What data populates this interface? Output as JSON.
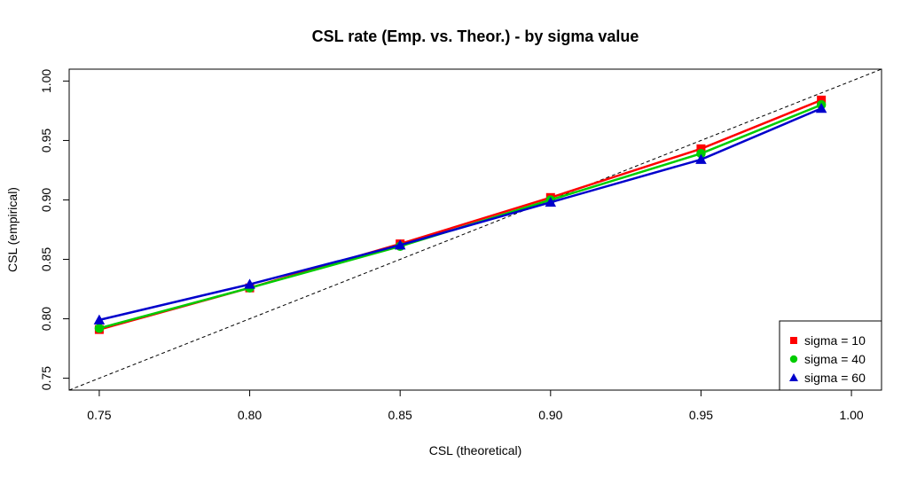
{
  "chart_data": {
    "type": "line",
    "title": "CSL rate (Emp. vs. Theor.) - by sigma value",
    "xlabel": "CSL (theoretical)",
    "ylabel": "CSL (empirical)",
    "xlim": [
      0.74,
      1.01
    ],
    "ylim": [
      0.74,
      1.01
    ],
    "x_ticks": [
      "0.75",
      "0.80",
      "0.85",
      "0.90",
      "0.95",
      "1.00"
    ],
    "y_ticks": [
      "0.75",
      "0.80",
      "0.85",
      "0.90",
      "0.95",
      "1.00"
    ],
    "x": [
      0.75,
      0.8,
      0.85,
      0.9,
      0.95,
      0.99
    ],
    "reference_line": {
      "type": "identity",
      "style": "dashed",
      "color": "#000000"
    },
    "legend_position": "bottom-right",
    "series": [
      {
        "name": "sigma = 10",
        "color": "#ff0000",
        "marker": "square",
        "values": [
          0.791,
          0.826,
          0.863,
          0.902,
          0.943,
          0.984
        ]
      },
      {
        "name": "sigma = 40",
        "color": "#00cc00",
        "marker": "circle",
        "values": [
          0.792,
          0.826,
          0.861,
          0.9,
          0.939,
          0.98
        ]
      },
      {
        "name": "sigma = 60",
        "color": "#0000cc",
        "marker": "triangle",
        "values": [
          0.799,
          0.829,
          0.862,
          0.898,
          0.934,
          0.977
        ]
      }
    ]
  }
}
